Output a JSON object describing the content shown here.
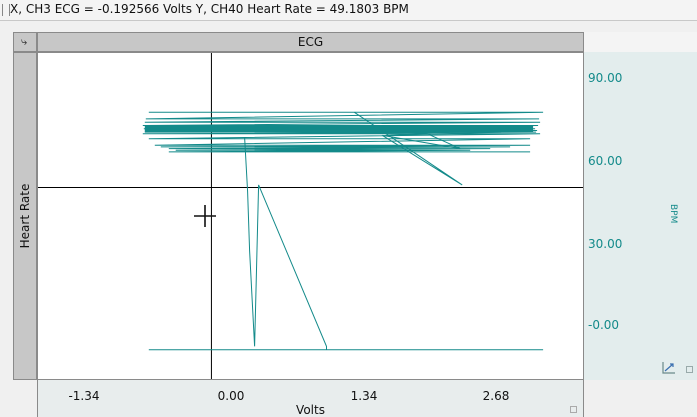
{
  "titlebar": {
    "readout": "X, CH3 ECG = -0.192566 Volts  Y, CH40 Heart Rate = 49.1803 BPM"
  },
  "plot": {
    "title": "ECG",
    "ylabel": "Heart Rate",
    "xlabel": "Volts",
    "y_units": "BPM",
    "pin_icon": "pin-icon",
    "trace_color": "#138a8a"
  },
  "x_ticks": [
    "-1.34",
    "0.00",
    "1.34",
    "2.68"
  ],
  "y_ticks": [
    "90.00",
    "60.00",
    "30.00",
    "-0.00"
  ],
  "chart_data": {
    "type": "line",
    "title": "ECG",
    "xlabel": "Volts",
    "ylabel": "Heart Rate",
    "y_units": "BPM",
    "xlim": [
      -1.93,
      3.55
    ],
    "ylim": [
      -9.5,
      90.0
    ],
    "x_ticks": [
      -1.34,
      0.0,
      1.34,
      2.68
    ],
    "y_ticks": [
      90.0,
      60.0,
      30.0,
      0.0
    ],
    "crosshair": {
      "x": -0.192566,
      "y": 49.1803
    },
    "series": [
      {
        "x": [
          -0.82,
          3.13,
          -0.85,
          3.09,
          -0.86,
          3.1,
          -0.88,
          3.08,
          -0.87,
          3.05,
          -0.85,
          3.07,
          -0.86,
          3.06,
          -0.88,
          3.1,
          -0.82,
          3.0,
          -0.76,
          3.0,
          -0.7,
          2.8,
          -0.62,
          2.6,
          -0.55,
          2.4,
          -0.62,
          3.0
        ],
        "y": [
          72.0,
          72.0,
          70.0,
          70.0,
          69.0,
          69.0,
          68.0,
          68.0,
          67.0,
          67.0,
          66.5,
          66.5,
          66.0,
          66.0,
          65.5,
          65.5,
          64.0,
          64.0,
          62.0,
          62.0,
          61.5,
          61.5,
          61.0,
          61.0,
          60.5,
          60.5,
          60.0,
          60.0
        ]
      },
      {
        "x": [
          1.24,
          2.32,
          1.52,
          2.3,
          1.86,
          2.71,
          1.55,
          2.87
        ],
        "y": [
          72.0,
          50.0,
          65.0,
          61.0,
          67.0,
          66.0,
          65.0,
          67.5
        ]
      },
      {
        "x": [
          0.14,
          0.17,
          0.19,
          0.24,
          0.28,
          0.96,
          0.96,
          -0.82,
          -0.82,
          3.13
        ],
        "y": [
          64.5,
          48.0,
          30.0,
          1.0,
          50.0,
          1.0,
          0.0,
          0.0,
          0.0,
          0.0
        ]
      }
    ]
  }
}
